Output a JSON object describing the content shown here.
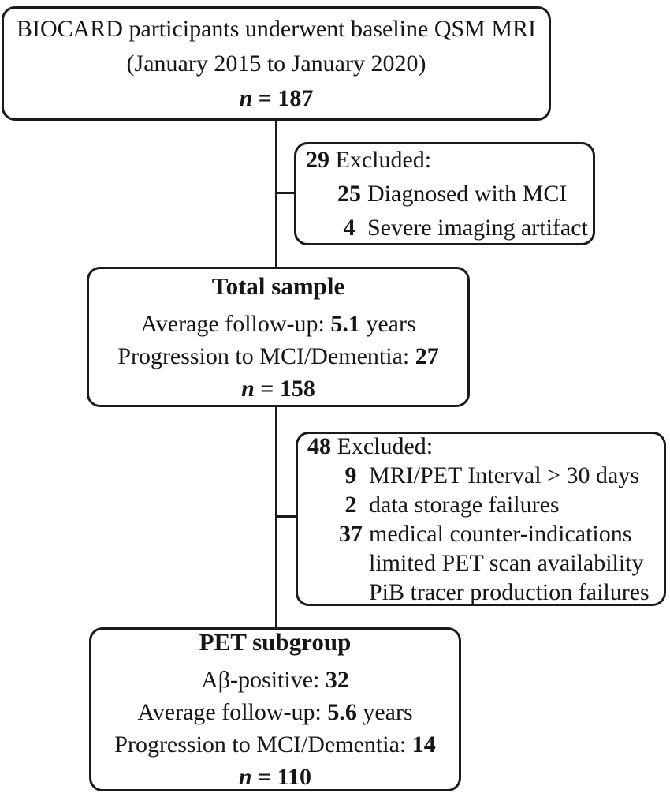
{
  "diagram": {
    "type": "study-flowchart",
    "ink_color": "#1b1b1b",
    "background_color": "#ffffff",
    "boxes": {
      "baseline": {
        "lines": [
          {
            "type": "center",
            "segs": [
              {
                "t": "BIOCARD participants underwent baseline QSM MRI"
              }
            ]
          },
          {
            "type": "center",
            "segs": [
              {
                "t": "(January 2015 to January 2020)"
              }
            ]
          },
          {
            "type": "center",
            "segs": [
              {
                "t": "n",
                "b": 1,
                "i": 1
              },
              {
                "t": " = 187",
                "b": 1
              }
            ]
          }
        ]
      },
      "excluded1": {
        "lines": [
          {
            "type": "header",
            "segs": [
              {
                "t": "29",
                "b": 1
              },
              {
                "t": " Excluded:"
              }
            ]
          },
          {
            "type": "item",
            "num": "25",
            "text": "Diagnosed with MCI"
          },
          {
            "type": "item",
            "num": "4",
            "text": "Severe imaging artifact"
          }
        ]
      },
      "total": {
        "lines": [
          {
            "type": "title",
            "segs": [
              {
                "t": "Total sample",
                "b": 1
              }
            ]
          },
          {
            "type": "center",
            "segs": [
              {
                "t": "Average follow-up: "
              },
              {
                "t": "5.1",
                "b": 1
              },
              {
                "t": " years"
              }
            ]
          },
          {
            "type": "center",
            "segs": [
              {
                "t": "Progression to MCI/Dementia: "
              },
              {
                "t": "27",
                "b": 1
              }
            ]
          },
          {
            "type": "center",
            "segs": [
              {
                "t": "n",
                "b": 1,
                "i": 1
              },
              {
                "t": " = 158",
                "b": 1
              }
            ]
          }
        ]
      },
      "excluded2": {
        "lines": [
          {
            "type": "header",
            "segs": [
              {
                "t": "48",
                "b": 1
              },
              {
                "t": " Excluded:"
              }
            ]
          },
          {
            "type": "item",
            "num": "9",
            "text": "MRI/PET Interval > 30 days"
          },
          {
            "type": "item",
            "num": "2",
            "text": "data storage failures"
          },
          {
            "type": "item",
            "num": "37",
            "text": "medical counter-indications"
          },
          {
            "type": "cont",
            "segs": [
              {
                "t": "limited PET scan availability"
              }
            ]
          },
          {
            "type": "cont",
            "segs": [
              {
                "t": "PiB tracer production failures"
              }
            ]
          }
        ]
      },
      "pet": {
        "lines": [
          {
            "type": "title",
            "segs": [
              {
                "t": "PET subgroup",
                "b": 1
              }
            ]
          },
          {
            "type": "center",
            "segs": [
              {
                "t": "Aβ-positive: "
              },
              {
                "t": "32",
                "b": 1
              }
            ]
          },
          {
            "type": "center",
            "segs": [
              {
                "t": "Average follow-up: "
              },
              {
                "t": "5.6",
                "b": 1
              },
              {
                "t": " years"
              }
            ]
          },
          {
            "type": "center",
            "segs": [
              {
                "t": "Progression to MCI/Dementia: "
              },
              {
                "t": "14",
                "b": 1
              }
            ]
          },
          {
            "type": "center",
            "segs": [
              {
                "t": "n",
                "b": 1,
                "i": 1
              },
              {
                "t": " = 110",
                "b": 1
              }
            ]
          }
        ]
      }
    }
  }
}
